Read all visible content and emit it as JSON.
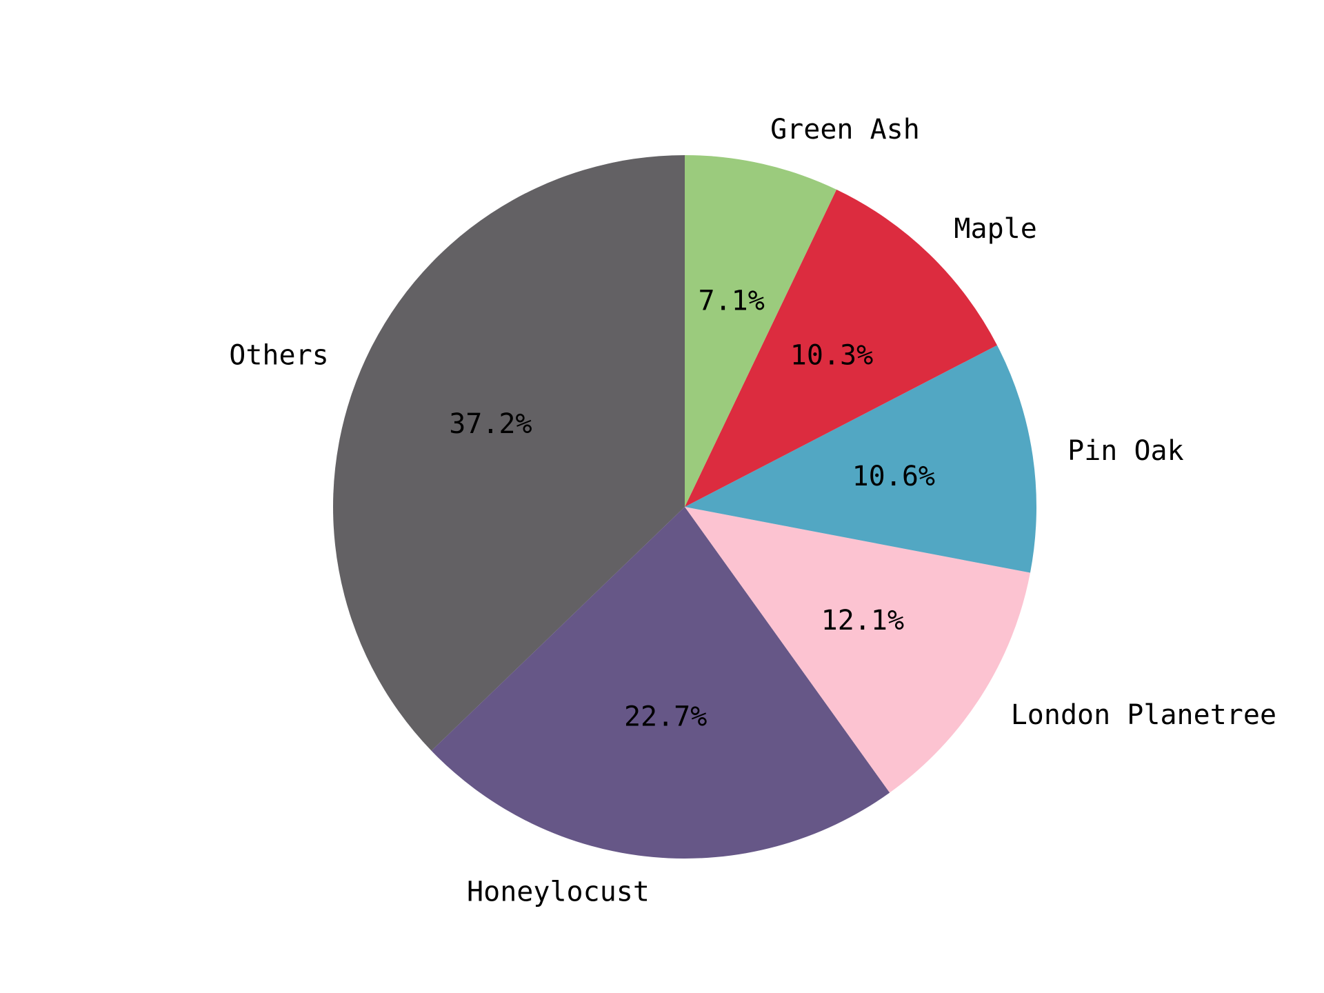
{
  "chart_data": {
    "type": "pie",
    "start_angle_deg": 90,
    "direction": "counterclockwise",
    "categories": [
      "Others",
      "Honeylocust",
      "London Planetree",
      "Pin Oak",
      "Maple",
      "Green Ash"
    ],
    "values": [
      37.2,
      22.7,
      12.1,
      10.6,
      10.3,
      7.1
    ],
    "labels": [
      "37.2%",
      "22.7%",
      "12.1%",
      "10.6%",
      "10.3%",
      "7.1%"
    ],
    "colors": [
      "#636164",
      "#665787",
      "#fcc3d1",
      "#52a7c3",
      "#dc2c3f",
      "#9bcb7d"
    ]
  }
}
